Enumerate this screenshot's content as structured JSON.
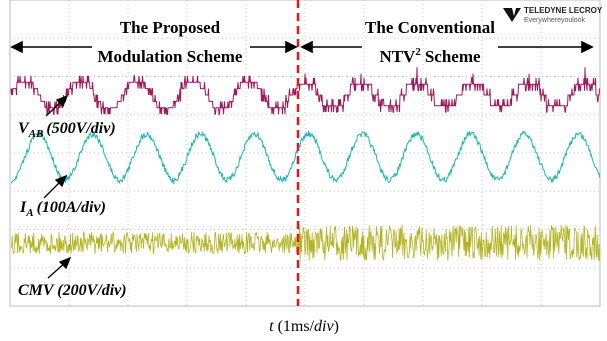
{
  "header": {
    "left": {
      "line1": "The Proposed",
      "line2": "Modulation Scheme"
    },
    "right": {
      "line1": "The Conventional",
      "line2_main": "NTV",
      "line2_sup": "2",
      "line2_rest": "Scheme"
    }
  },
  "logo": {
    "brand": "TELEDYNE LECROY",
    "tagline": "Everywhereyoulook"
  },
  "traces": [
    {
      "symbol": "V",
      "subscript": "AB",
      "scale": "(500V/div)"
    },
    {
      "symbol": "I",
      "subscript": "A",
      "scale": "(100A/div)"
    },
    {
      "label": "CMV (200V/div)"
    }
  ],
  "x_axis": {
    "variable": "t",
    "unit_start": "(1ms/",
    "unit_italic": "div",
    "unit_end": ")"
  }
}
